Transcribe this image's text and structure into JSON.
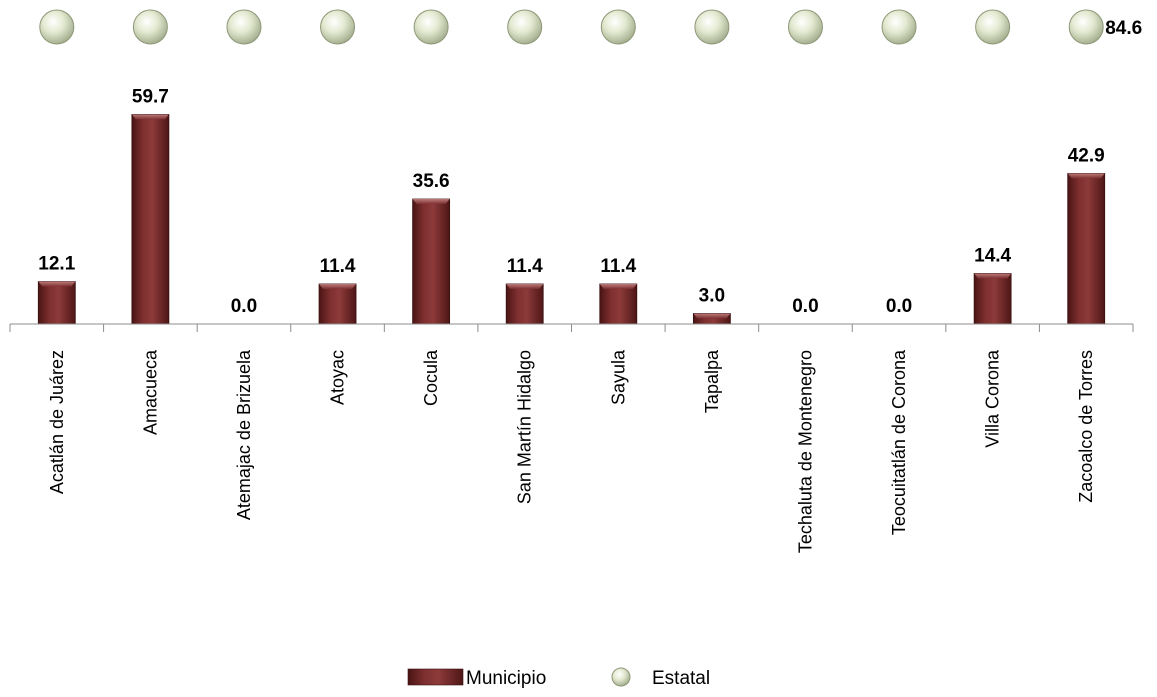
{
  "chart_data": {
    "type": "bar",
    "categories": [
      "Acatlán de Juárez",
      "Amacueca",
      "Atemajac de Brizuela",
      "Atoyac",
      "Cocula",
      "San Martín Hidalgo",
      "Sayula",
      "Tapalpa",
      "Techaluta de Montenegro",
      "Teocuitatlán de Corona",
      "Villa Corona",
      "Zacoalco de Torres"
    ],
    "series": [
      {
        "name": "Municipio",
        "type": "bar",
        "color": "#7b2a2a",
        "values": [
          12.1,
          59.7,
          0.0,
          11.4,
          35.6,
          11.4,
          11.4,
          3.0,
          0.0,
          0.0,
          14.4,
          42.9
        ],
        "labels": [
          "12.1",
          "59.7",
          "0.0",
          "11.4",
          "35.6",
          "11.4",
          "11.4",
          "3.0",
          "0.0",
          "0.0",
          "14.4",
          "42.9"
        ]
      },
      {
        "name": "Estatal",
        "type": "line",
        "color": "#b5541b",
        "marker_color": "#d8e0c4",
        "values": [
          84.6,
          84.6,
          84.6,
          84.6,
          84.6,
          84.6,
          84.6,
          84.6,
          84.6,
          84.6,
          84.6,
          84.6
        ],
        "end_label": "84.6"
      }
    ],
    "title": "",
    "xlabel": "",
    "ylabel": "",
    "ylim": [
      0,
      84.6
    ],
    "grid": false,
    "legend_position": "bottom"
  }
}
